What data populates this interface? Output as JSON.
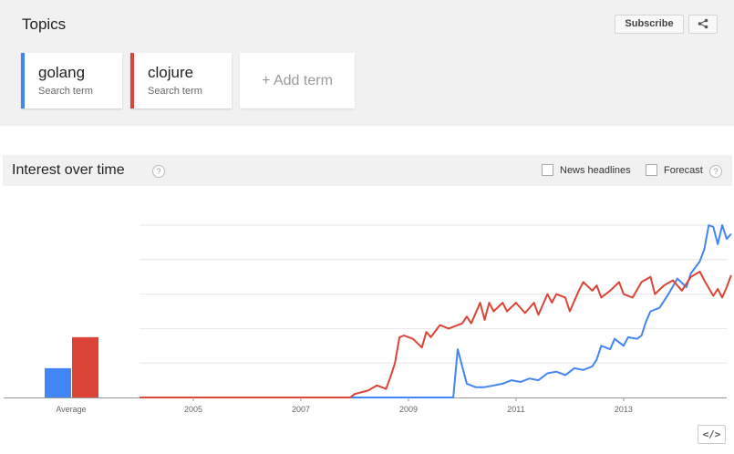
{
  "topics": {
    "title": "Topics",
    "subscribe_label": "Subscribe",
    "add_term_label": "+ Add term",
    "terms": [
      {
        "name": "golang",
        "sub": "Search term",
        "color": "#4285f4"
      },
      {
        "name": "clojure",
        "sub": "Search term",
        "color": "#db4437"
      }
    ]
  },
  "interest": {
    "title": "Interest over time",
    "help": "?",
    "news_label": "News headlines",
    "forecast_label": "Forecast",
    "embed_label": "</>"
  },
  "chart_data": {
    "type": "line",
    "x_range": [
      "2004-01",
      "2014-12"
    ],
    "x_ticks": [
      "2005",
      "2007",
      "2009",
      "2011",
      "2013"
    ],
    "ylim": [
      0,
      100
    ],
    "y_gridlines": [
      20,
      40,
      60,
      80,
      100
    ],
    "grid": true,
    "average": {
      "label": "Average",
      "bars": [
        {
          "name": "golang",
          "value": 17,
          "color": "#4285f4"
        },
        {
          "name": "clojure",
          "value": 35,
          "color": "#db4437"
        }
      ]
    },
    "series": [
      {
        "name": "golang",
        "color": "#4285f4",
        "points": [
          [
            "2004-01",
            0
          ],
          [
            "2007-12",
            0
          ],
          [
            "2008-01",
            0
          ],
          [
            "2009-10",
            0
          ],
          [
            "2009-11",
            0
          ],
          [
            "2009-12",
            28
          ],
          [
            "2010-02",
            8
          ],
          [
            "2010-04",
            6
          ],
          [
            "2010-06",
            6
          ],
          [
            "2010-08",
            7
          ],
          [
            "2010-10",
            8
          ],
          [
            "2010-12",
            10
          ],
          [
            "2011-02",
            9
          ],
          [
            "2011-04",
            11
          ],
          [
            "2011-06",
            10
          ],
          [
            "2011-08",
            14
          ],
          [
            "2011-10",
            15
          ],
          [
            "2011-12",
            13
          ],
          [
            "2012-02",
            17
          ],
          [
            "2012-04",
            16
          ],
          [
            "2012-06",
            18
          ],
          [
            "2012-07",
            22
          ],
          [
            "2012-08",
            30
          ],
          [
            "2012-10",
            28
          ],
          [
            "2012-11",
            34
          ],
          [
            "2013-01",
            30
          ],
          [
            "2013-02",
            35
          ],
          [
            "2013-04",
            34
          ],
          [
            "2013-05",
            36
          ],
          [
            "2013-06",
            44
          ],
          [
            "2013-07",
            50
          ],
          [
            "2013-09",
            52
          ],
          [
            "2013-11",
            60
          ],
          [
            "2014-01",
            69
          ],
          [
            "2014-03",
            64
          ],
          [
            "2014-04",
            72
          ],
          [
            "2014-06",
            79
          ],
          [
            "2014-07",
            86
          ],
          [
            "2014-08",
            100
          ],
          [
            "2014-09",
            99
          ],
          [
            "2014-10",
            89
          ],
          [
            "2014-11",
            100
          ],
          [
            "2014-12",
            92
          ],
          [
            "2015-01",
            95
          ]
        ]
      },
      {
        "name": "clojure",
        "color": "#db4437",
        "points": [
          [
            "2004-01",
            0
          ],
          [
            "2007-12",
            0
          ],
          [
            "2008-01",
            2
          ],
          [
            "2008-04",
            4
          ],
          [
            "2008-06",
            7
          ],
          [
            "2008-08",
            5
          ],
          [
            "2008-09",
            12
          ],
          [
            "2008-10",
            20
          ],
          [
            "2008-11",
            35
          ],
          [
            "2008-12",
            36
          ],
          [
            "2009-02",
            34
          ],
          [
            "2009-04",
            29
          ],
          [
            "2009-05",
            38
          ],
          [
            "2009-06",
            35
          ],
          [
            "2009-08",
            42
          ],
          [
            "2009-10",
            40
          ],
          [
            "2010-01",
            43
          ],
          [
            "2010-02",
            47
          ],
          [
            "2010-03",
            43
          ],
          [
            "2010-05",
            55
          ],
          [
            "2010-06",
            45
          ],
          [
            "2010-07",
            55
          ],
          [
            "2010-08",
            50
          ],
          [
            "2010-10",
            55
          ],
          [
            "2010-11",
            50
          ],
          [
            "2011-01",
            55
          ],
          [
            "2011-03",
            49
          ],
          [
            "2011-05",
            55
          ],
          [
            "2011-06",
            48
          ],
          [
            "2011-08",
            60
          ],
          [
            "2011-09",
            55
          ],
          [
            "2011-10",
            60
          ],
          [
            "2011-12",
            58
          ],
          [
            "2012-01",
            50
          ],
          [
            "2012-03",
            62
          ],
          [
            "2012-04",
            67
          ],
          [
            "2012-06",
            62
          ],
          [
            "2012-07",
            65
          ],
          [
            "2012-08",
            58
          ],
          [
            "2012-10",
            62
          ],
          [
            "2012-12",
            67
          ],
          [
            "2013-01",
            60
          ],
          [
            "2013-03",
            58
          ],
          [
            "2013-05",
            67
          ],
          [
            "2013-07",
            70
          ],
          [
            "2013-08",
            60
          ],
          [
            "2013-10",
            65
          ],
          [
            "2013-12",
            68
          ],
          [
            "2014-02",
            62
          ],
          [
            "2014-04",
            70
          ],
          [
            "2014-06",
            73
          ],
          [
            "2014-07",
            68
          ],
          [
            "2014-09",
            59
          ],
          [
            "2014-10",
            63
          ],
          [
            "2014-11",
            58
          ],
          [
            "2014-12",
            64
          ],
          [
            "2015-01",
            71
          ]
        ]
      }
    ]
  }
}
